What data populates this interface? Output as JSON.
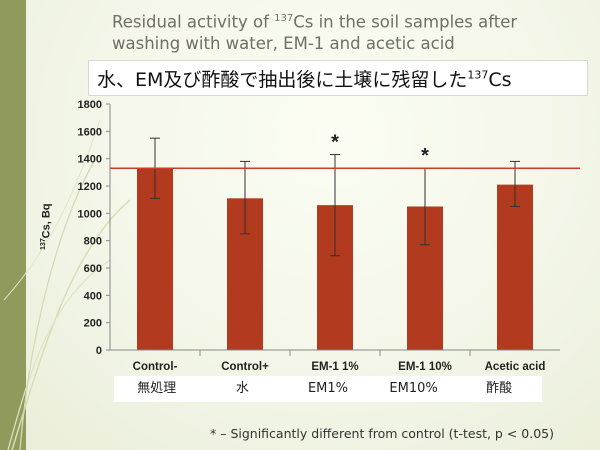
{
  "subtitle": {
    "line1_pre": "Residual activity of ",
    "line1_sup": "137",
    "line1_post": "Cs in the soil samples after",
    "line2": "washing with water, EM-1 and acetic acid"
  },
  "jp_title": {
    "text": "水、EM及び酢酸で抽出後に土壌に残留した",
    "sup": "137",
    "post": "Cs"
  },
  "ylabel": {
    "sup": "137",
    "text": "Cs, Bq"
  },
  "jp_labels": [
    "無処理",
    "水",
    "EM1%",
    "EM10%",
    "酢酸"
  ],
  "footnote": "* – Significantly different from control (t-test, p < 0.05)",
  "colors": {
    "bar": "#b23a1f",
    "reference_line": "#d23a2a",
    "strip": "#8f9a5c"
  },
  "chart_data": {
    "type": "bar",
    "categories": [
      "Control-",
      "Control+",
      "EM-1 1%",
      "EM-1 10%",
      "Acetic acid"
    ],
    "values": [
      1325,
      1110,
      1060,
      1050,
      1210
    ],
    "error_high": [
      1550,
      1380,
      1430,
      1330,
      1380
    ],
    "error_low": [
      1110,
      850,
      690,
      770,
      1050
    ],
    "significance": [
      "",
      "",
      "*",
      "*",
      ""
    ],
    "reference_line": 1330,
    "ylim": [
      0,
      1800
    ],
    "yticks": [
      0,
      200,
      400,
      600,
      800,
      1000,
      1200,
      1400,
      1600,
      1800
    ],
    "grid": false,
    "legend": "none"
  }
}
